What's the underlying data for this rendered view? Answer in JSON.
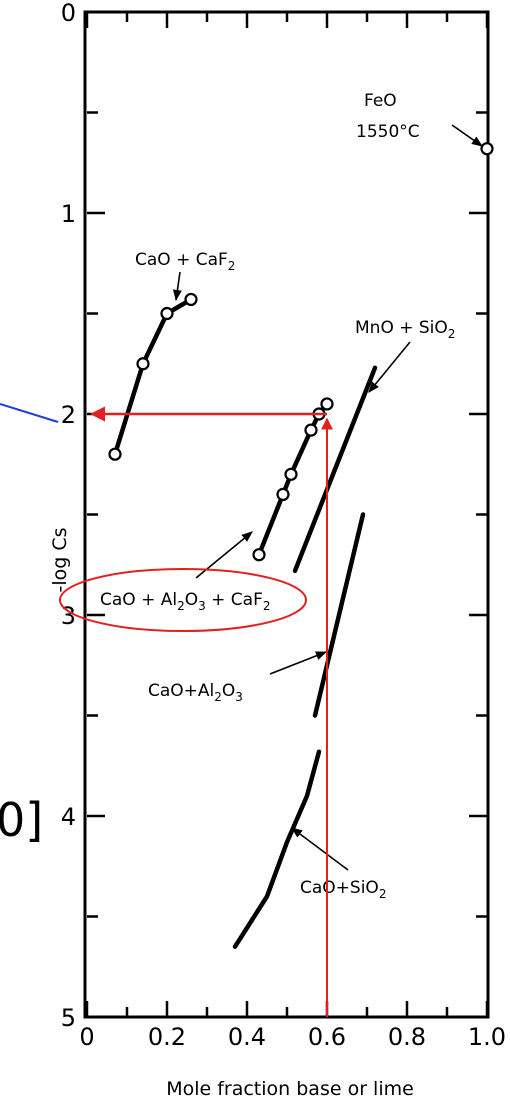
{
  "chart_data": {
    "type": "line",
    "title": "",
    "xlabel": "Mole fraction base or lime",
    "ylabel": "-log Cs",
    "xlim": [
      0,
      1.0
    ],
    "ylim": [
      0,
      5
    ],
    "y_inverted": true,
    "x_ticks": [
      "0",
      "0.2",
      "0.4",
      "0.6",
      "0.8",
      "1.0"
    ],
    "y_ticks": [
      "0",
      "1",
      "2",
      "3",
      "4",
      "5"
    ],
    "grid": false,
    "series": [
      {
        "name": "CaO + CaF2",
        "x": [
          0.07,
          0.14,
          0.2,
          0.26
        ],
        "y": [
          2.2,
          1.75,
          1.5,
          1.43
        ],
        "markers": true
      },
      {
        "name": "CaO + Al2O3 + CaF2",
        "x": [
          0.43,
          0.49,
          0.51,
          0.56,
          0.58,
          0.6
        ],
        "y": [
          2.7,
          2.4,
          2.3,
          2.08,
          2.0,
          1.95
        ],
        "markers": true
      },
      {
        "name": "MnO + SiO2",
        "x": [
          0.52,
          0.72
        ],
        "y": [
          2.78,
          1.77
        ],
        "markers": false
      },
      {
        "name": "CaO + Al2O3",
        "x": [
          0.57,
          0.69
        ],
        "y": [
          3.5,
          2.5
        ],
        "markers": false
      },
      {
        "name": "CaO + SiO2",
        "x": [
          0.37,
          0.45,
          0.5,
          0.55,
          0.58
        ],
        "y": [
          4.65,
          4.4,
          4.13,
          3.9,
          3.68
        ],
        "markers": false
      },
      {
        "name": "FeO 1550°C",
        "x": [
          1.0
        ],
        "y": [
          0.68
        ],
        "markers": true
      }
    ],
    "annotations": {
      "cao_caf2": {
        "main": "CaO + CaF",
        "sub": "2"
      },
      "mno_sio2": {
        "main": "MnO + SiO",
        "sub": "2"
      },
      "cao_al2o3_caf2": {
        "p1": "CaO + Al",
        "s1": "2",
        "p2": "O",
        "s2": "3",
        "p3": " + CaF",
        "s3": "2"
      },
      "cao_al2o3": {
        "p1": "CaO+Al",
        "s1": "2",
        "p2": "O",
        "s2": "3"
      },
      "cao_sio2": {
        "main": "CaO+SiO",
        "sub": "2"
      },
      "feo_line1": "FeO",
      "feo_line2": "1550°C"
    },
    "highlight": {
      "x_value": 0.6,
      "y_value": 2.0,
      "color": "#e41f1f",
      "pointer_color": "#1f3fd6",
      "ellipse_color": "#e41f1f"
    },
    "edge_text": "0]"
  }
}
